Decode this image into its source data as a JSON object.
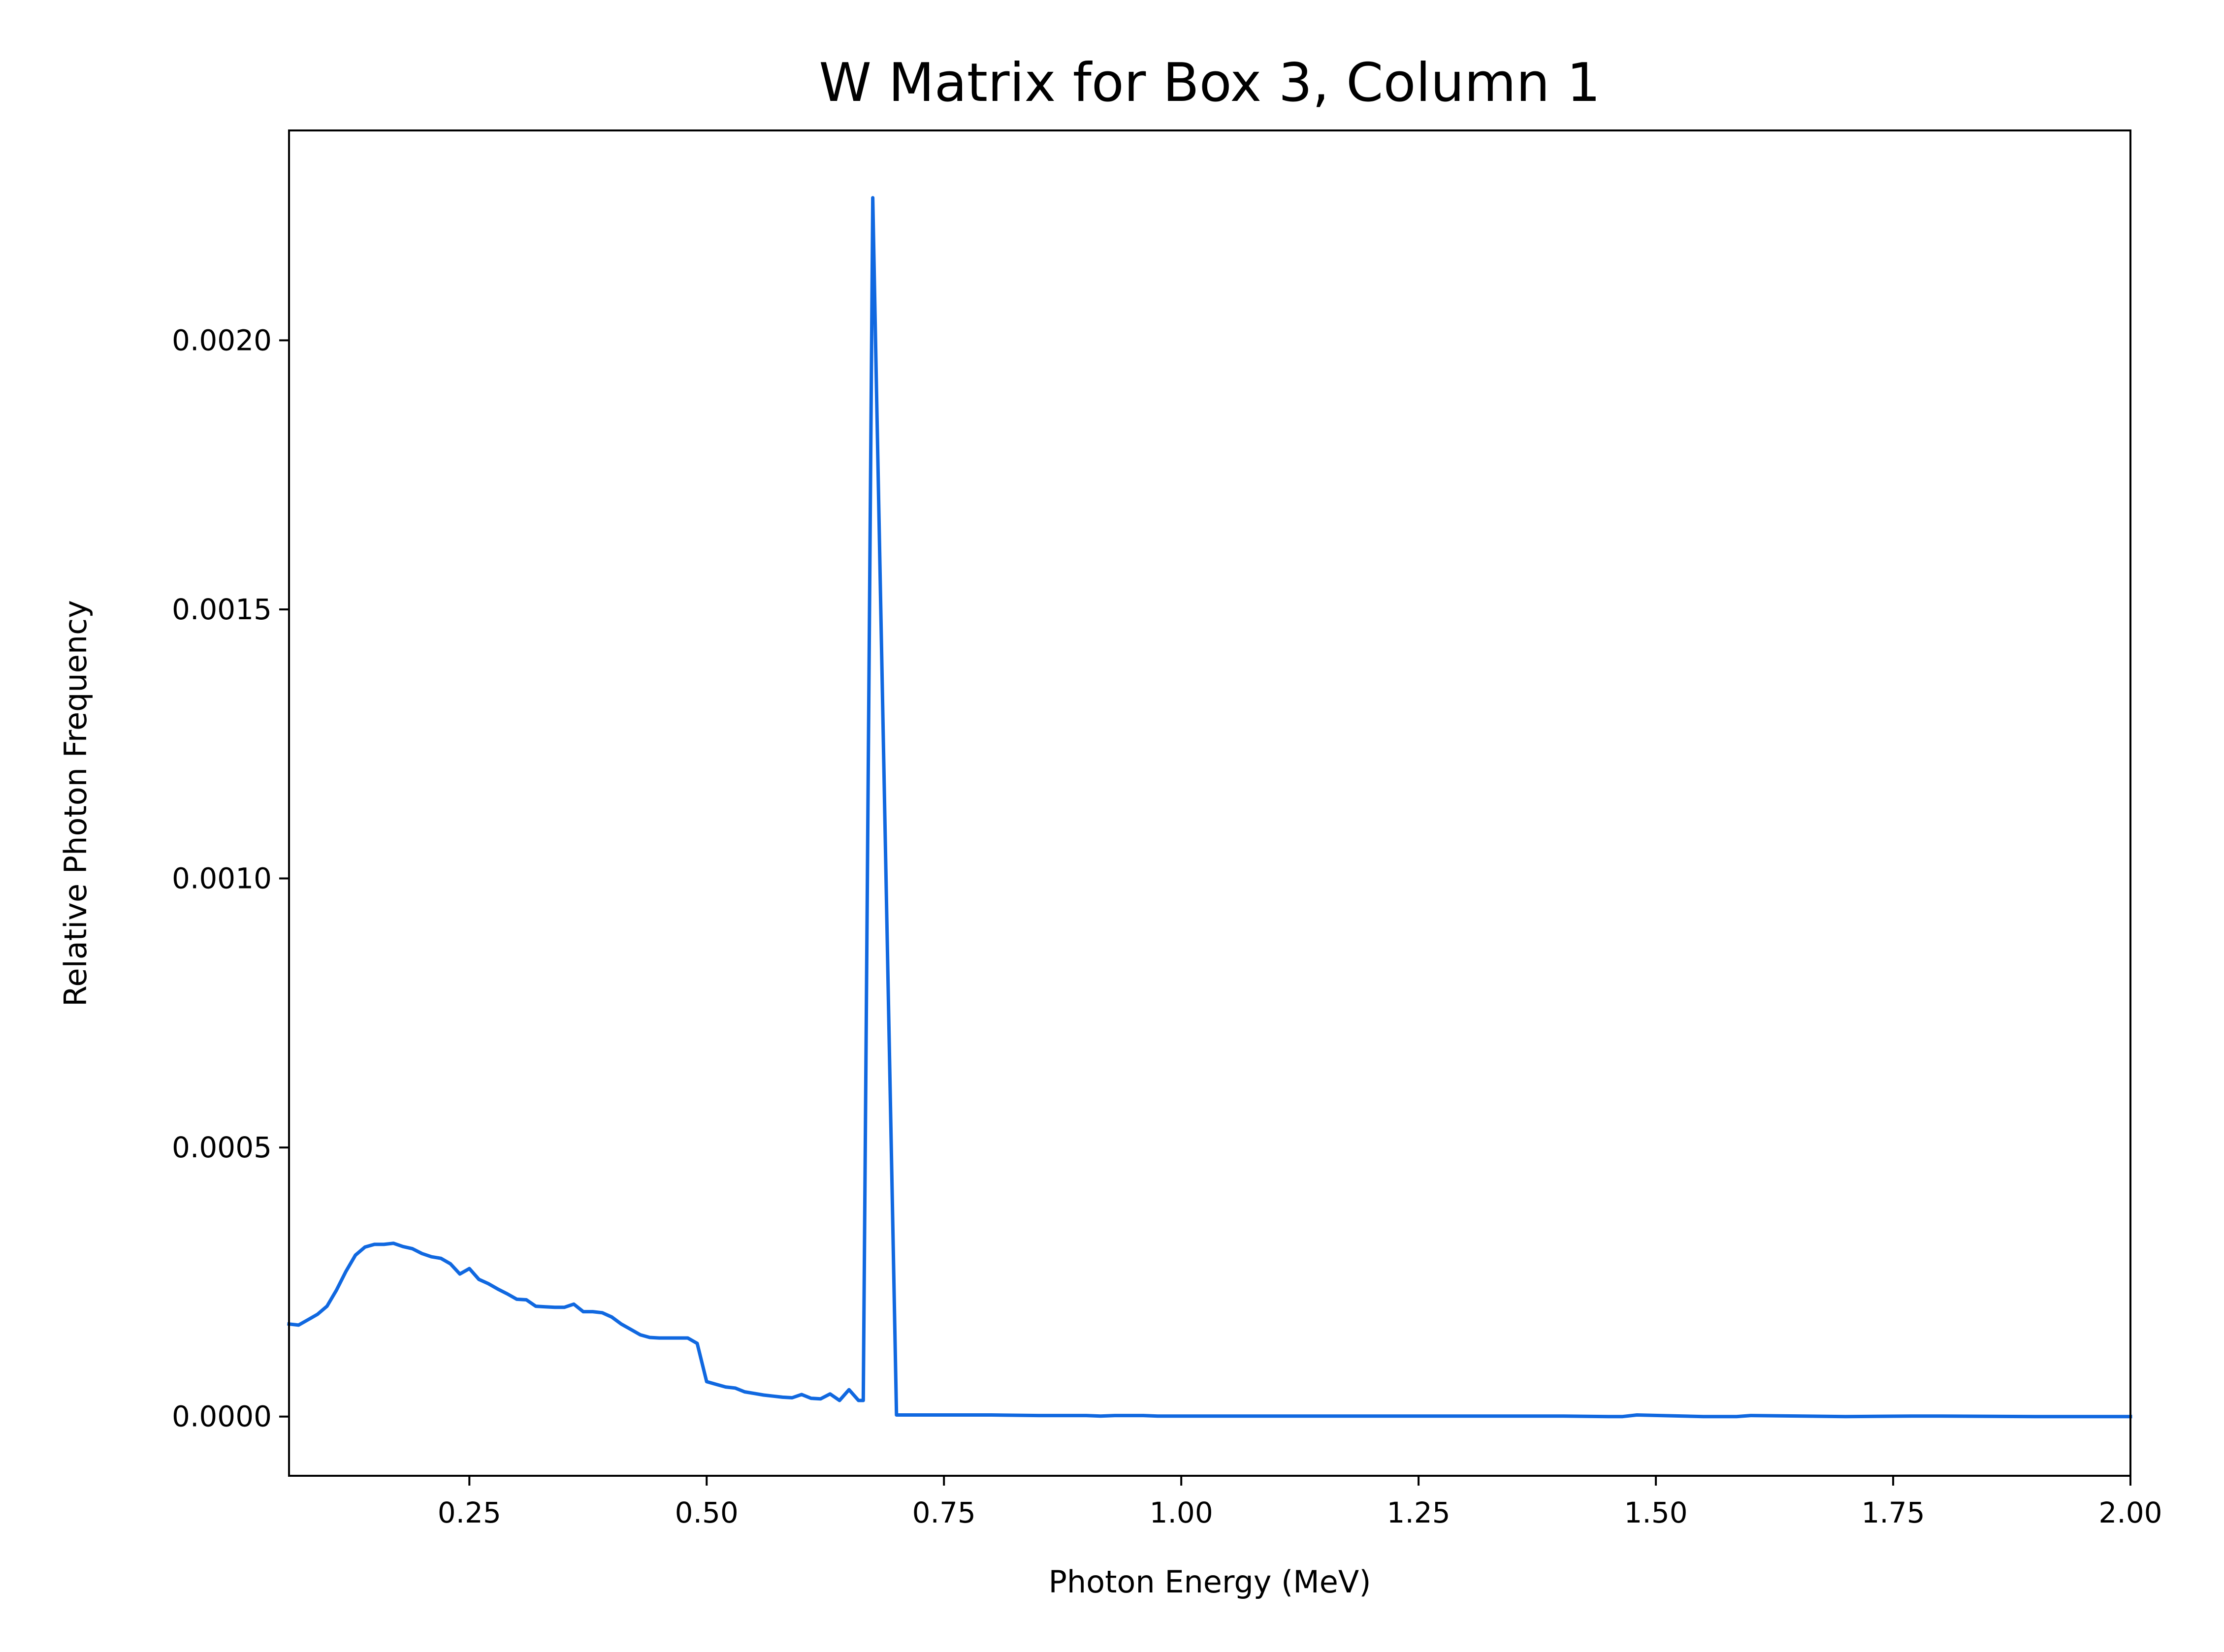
{
  "chart_data": {
    "type": "line",
    "title": "W Matrix for Box 3, Column 1",
    "xlabel": "Photon Energy (MeV)",
    "ylabel": "Relative Photon Frequency",
    "xlim": [
      0.06,
      2.0
    ],
    "ylim": [
      -0.00011,
      0.00239
    ],
    "grid": false,
    "legend": "none",
    "x_ticks": [
      "0.25",
      "0.50",
      "0.75",
      "1.00",
      "1.25",
      "1.50",
      "1.75",
      "2.00"
    ],
    "x_tick_values": [
      0.25,
      0.5,
      0.75,
      1.0,
      1.25,
      1.5,
      1.75,
      2.0
    ],
    "y_ticks": [
      "0.0000",
      "0.0005",
      "0.0010",
      "0.0015",
      "0.0020"
    ],
    "y_tick_values": [
      0.0,
      0.0005,
      0.001,
      0.0015,
      0.002
    ],
    "series": [
      {
        "color": "#1068e0",
        "x": [
          0.06,
          0.07,
          0.08,
          0.09,
          0.1,
          0.11,
          0.12,
          0.13,
          0.14,
          0.15,
          0.16,
          0.17,
          0.18,
          0.19,
          0.2,
          0.21,
          0.22,
          0.23,
          0.24,
          0.25,
          0.26,
          0.27,
          0.28,
          0.29,
          0.3,
          0.31,
          0.32,
          0.33,
          0.34,
          0.35,
          0.36,
          0.37,
          0.38,
          0.39,
          0.4,
          0.41,
          0.42,
          0.43,
          0.44,
          0.45,
          0.46,
          0.47,
          0.48,
          0.49,
          0.5,
          0.51,
          0.52,
          0.53,
          0.54,
          0.55,
          0.56,
          0.57,
          0.58,
          0.59,
          0.6,
          0.61,
          0.62,
          0.63,
          0.64,
          0.65,
          0.66,
          0.665,
          0.675,
          0.7,
          0.73,
          0.76,
          0.8,
          0.85,
          0.9,
          0.915,
          0.93,
          0.96,
          0.975,
          0.99,
          1.05,
          1.1,
          1.12,
          1.14,
          1.2,
          1.25,
          1.3,
          1.4,
          1.45,
          1.465,
          1.48,
          1.55,
          1.585,
          1.6,
          1.7,
          1.77,
          1.8,
          1.9,
          2.0
        ],
        "y": [
          0.000172,
          0.00017,
          0.00018,
          0.00019,
          0.000205,
          0.000235,
          0.00027,
          0.0003,
          0.000315,
          0.00032,
          0.00032,
          0.000322,
          0.000316,
          0.000312,
          0.000303,
          0.000297,
          0.000294,
          0.000284,
          0.000265,
          0.000275,
          0.000255,
          0.000247,
          0.000237,
          0.000228,
          0.000218,
          0.000217,
          0.000205,
          0.000204,
          0.000203,
          0.000203,
          0.000209,
          0.000195,
          0.000195,
          0.000193,
          0.000185,
          0.000172,
          0.000162,
          0.000152,
          0.000147,
          0.000146,
          0.000146,
          0.000146,
          0.000146,
          0.000136,
          6.5e-05,
          6e-05,
          5.5e-05,
          5.3e-05,
          4.6e-05,
          4.3e-05,
          4e-05,
          3.8e-05,
          3.6e-05,
          3.5e-05,
          4.1e-05,
          3.4e-05,
          3.3e-05,
          4.2e-05,
          3e-05,
          5e-05,
          3e-05,
          3e-05,
          0.002265,
          3e-06,
          3e-06,
          3e-06,
          3e-06,
          2e-06,
          2e-06,
          1e-06,
          2e-06,
          2e-06,
          1e-06,
          1e-06,
          1e-06,
          1e-06,
          1e-06,
          1e-06,
          1e-06,
          1e-06,
          1e-06,
          1e-06,
          0.0,
          0.0,
          3e-06,
          0.0,
          0.0,
          2e-06,
          0.0,
          1e-06,
          1e-06,
          0.0,
          0.0
        ]
      }
    ]
  }
}
